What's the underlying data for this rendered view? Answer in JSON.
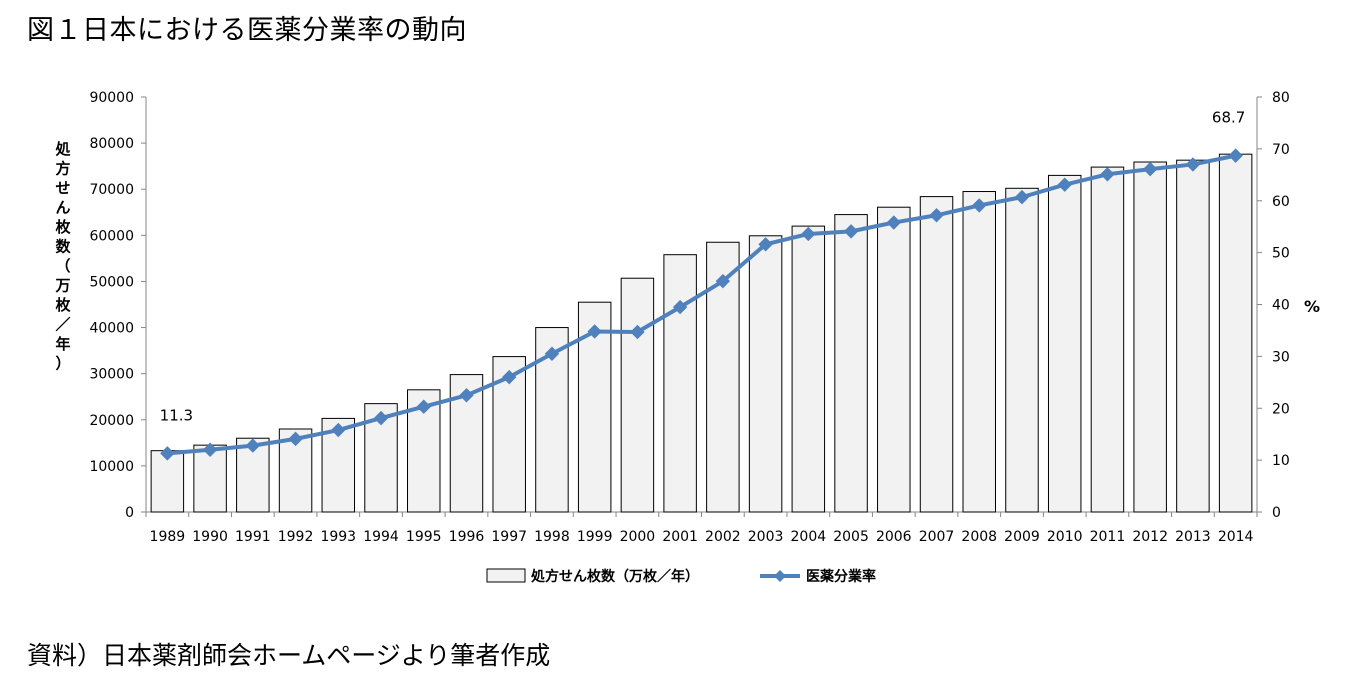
{
  "title": "図１日本における医薬分業率の動向",
  "source_note": "資料）日本薬剤師会ホームページより筆者作成",
  "chart_data": {
    "type": "bar",
    "categories": [
      "1989",
      "1990",
      "1991",
      "1992",
      "1993",
      "1994",
      "1995",
      "1996",
      "1997",
      "1998",
      "1999",
      "2000",
      "2001",
      "2002",
      "2003",
      "2004",
      "2005",
      "2006",
      "2007",
      "2008",
      "2009",
      "2010",
      "2011",
      "2012",
      "2013",
      "2014"
    ],
    "series": [
      {
        "name": "処方せん枚数（万枚／年）",
        "type": "bar",
        "axis": "left",
        "values": [
          13300,
          14500,
          16000,
          18000,
          20300,
          23500,
          26500,
          29800,
          33700,
          40000,
          45500,
          50700,
          55800,
          58500,
          59900,
          62000,
          64500,
          66100,
          68400,
          69500,
          70200,
          73000,
          74800,
          75900,
          76300,
          77600
        ],
        "color": "#f2f2f2"
      },
      {
        "name": "医薬分業率",
        "type": "line",
        "axis": "right",
        "values": [
          11.3,
          12.0,
          12.8,
          14.1,
          15.8,
          18.1,
          20.3,
          22.5,
          26.0,
          30.5,
          34.8,
          34.7,
          39.5,
          44.5,
          51.6,
          53.6,
          54.1,
          55.8,
          57.2,
          59.1,
          60.7,
          63.1,
          65.1,
          66.1,
          67.0,
          68.7
        ],
        "color": "#4f81bd"
      }
    ],
    "ylabel": "処方せん枚数（万枚／年）",
    "y2label": "%",
    "ylim": [
      0,
      90000
    ],
    "y2lim": [
      0,
      80
    ],
    "yticks": [
      0,
      10000,
      20000,
      30000,
      40000,
      50000,
      60000,
      70000,
      80000,
      90000
    ],
    "y2ticks": [
      0,
      10,
      20,
      30,
      40,
      50,
      60,
      70,
      80
    ],
    "annotations": [
      {
        "category": "1989",
        "text": "11.3"
      },
      {
        "category": "2014",
        "text": "68.7"
      }
    ],
    "legend": {
      "position": "bottom",
      "items": [
        "処方せん枚数（万枚／年）",
        "医薬分業率"
      ]
    },
    "grid": false
  }
}
